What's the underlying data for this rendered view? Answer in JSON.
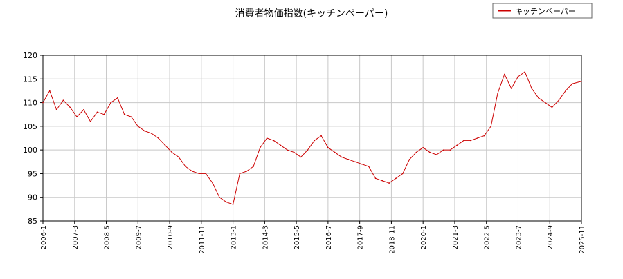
{
  "chart_data": {
    "type": "line",
    "title": "消費者物価指数(キッチンペーパー)",
    "xlabel": "",
    "ylabel": "",
    "ylim": [
      85,
      120
    ],
    "yticks": [
      85,
      90,
      95,
      100,
      105,
      110,
      115,
      120
    ],
    "xlim": [
      "2006-1",
      "2025-11"
    ],
    "xticks": [
      "2006-1",
      "2007-3",
      "2008-5",
      "2009-7",
      "2010-9",
      "2011-11",
      "2013-1",
      "2014-3",
      "2015-5",
      "2016-7",
      "2017-9",
      "2018-11",
      "2020-1",
      "2021-3",
      "2022-5",
      "2023-7",
      "2024-9",
      "2025-11"
    ],
    "grid": true,
    "legend": {
      "position": "top-right",
      "entries": [
        "キッチンペーパー"
      ]
    },
    "colors": {
      "series": "#cc0000",
      "grid": "#c8c8c8",
      "axis": "#000000"
    },
    "series": [
      {
        "name": "キッチンペーパー",
        "x": [
          "2006-01",
          "2006-04",
          "2006-07",
          "2006-10",
          "2007-01",
          "2007-04",
          "2007-07",
          "2007-10",
          "2008-01",
          "2008-04",
          "2008-07",
          "2008-10",
          "2009-01",
          "2009-04",
          "2009-07",
          "2009-10",
          "2010-01",
          "2010-04",
          "2010-07",
          "2010-10",
          "2011-01",
          "2011-04",
          "2011-07",
          "2011-10",
          "2012-01",
          "2012-04",
          "2012-07",
          "2012-10",
          "2013-01",
          "2013-04",
          "2013-07",
          "2013-10",
          "2014-01",
          "2014-04",
          "2014-07",
          "2014-10",
          "2015-01",
          "2015-04",
          "2015-07",
          "2015-10",
          "2016-01",
          "2016-04",
          "2016-07",
          "2016-10",
          "2017-01",
          "2017-04",
          "2017-07",
          "2017-10",
          "2018-01",
          "2018-04",
          "2018-07",
          "2018-10",
          "2019-01",
          "2019-04",
          "2019-07",
          "2019-10",
          "2020-01",
          "2020-04",
          "2020-07",
          "2020-10",
          "2021-01",
          "2021-04",
          "2021-07",
          "2021-10",
          "2022-01",
          "2022-04",
          "2022-07",
          "2022-10",
          "2023-01",
          "2023-04",
          "2023-07",
          "2023-10",
          "2024-01",
          "2024-04",
          "2024-07",
          "2024-10",
          "2025-01",
          "2025-04",
          "2025-07",
          "2025-11"
        ],
        "values": [
          110.0,
          112.5,
          108.5,
          110.5,
          109.0,
          107.0,
          108.5,
          106.0,
          108.0,
          107.5,
          110.0,
          111.0,
          107.5,
          107.0,
          105.0,
          104.0,
          103.5,
          102.5,
          101.0,
          99.5,
          98.5,
          96.5,
          95.5,
          95.0,
          95.0,
          93.0,
          90.0,
          89.0,
          88.5,
          95.0,
          95.5,
          96.5,
          100.5,
          102.5,
          102.0,
          101.0,
          100.0,
          99.5,
          98.5,
          100.0,
          102.0,
          103.0,
          100.5,
          99.5,
          98.5,
          98.0,
          97.5,
          97.0,
          96.5,
          94.0,
          93.5,
          93.0,
          94.0,
          95.0,
          98.0,
          99.5,
          100.5,
          99.5,
          99.0,
          100.0,
          100.0,
          101.0,
          102.0,
          102.0,
          102.5,
          103.0,
          105.0,
          112.0,
          116.0,
          113.0,
          115.5,
          116.5,
          113.0,
          111.0,
          110.0,
          109.0,
          110.5,
          112.5,
          114.0,
          114.5
        ]
      }
    ]
  }
}
